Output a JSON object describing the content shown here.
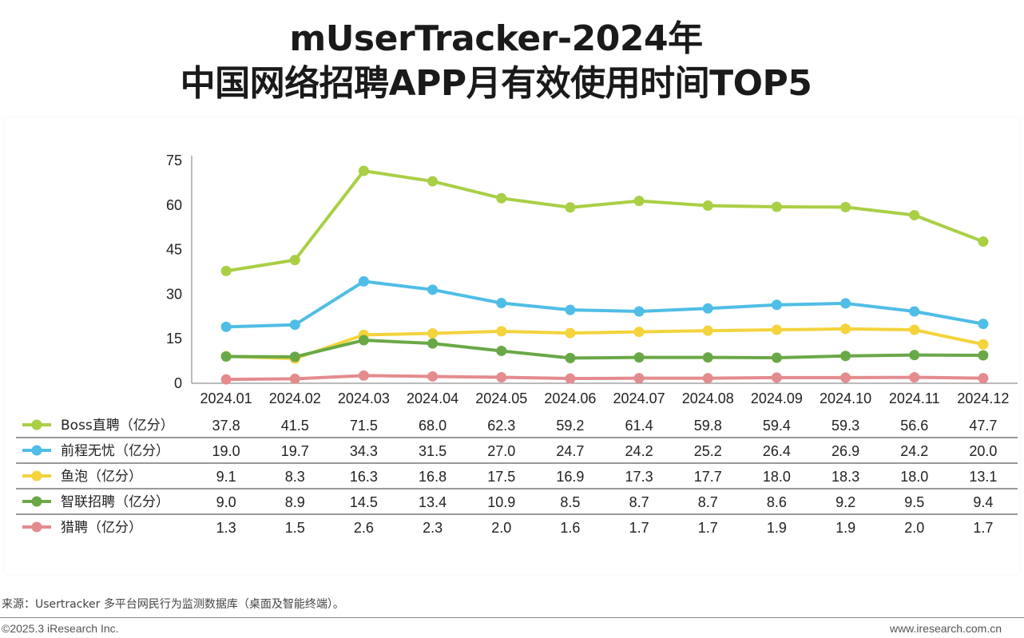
{
  "title_line1": "mUserTracker-2024年",
  "title_line2": "中国网络招聘APP月有效使用时间TOP5",
  "source_note": "来源：Usertracker 多平台网民行为监测数据库（桌面及智能终端）。",
  "copyright": "©2025.3 iResearch Inc.",
  "website": "www.iresearch.com.cn",
  "chart_data": {
    "type": "line",
    "categories": [
      "2024.01",
      "2024.02",
      "2024.03",
      "2024.04",
      "2024.05",
      "2024.06",
      "2024.07",
      "2024.08",
      "2024.09",
      "2024.10",
      "2024.11",
      "2024.12"
    ],
    "yticks": [
      "0",
      "15",
      "30",
      "45",
      "60",
      "75"
    ],
    "ylim": [
      0,
      75
    ],
    "grid": false,
    "legend": "data-table-below",
    "series": [
      {
        "name": "Boss直聘（亿分）",
        "color": "#a9cf45",
        "values": [
          "37.8",
          "41.5",
          "71.5",
          "68.0",
          "62.3",
          "59.2",
          "61.4",
          "59.8",
          "59.4",
          "59.3",
          "56.6",
          "47.7"
        ]
      },
      {
        "name": "前程无忧（亿分）",
        "color": "#4fbde6",
        "values": [
          "19.0",
          "19.7",
          "34.3",
          "31.5",
          "27.0",
          "24.7",
          "24.2",
          "25.2",
          "26.4",
          "26.9",
          "24.2",
          "20.0"
        ]
      },
      {
        "name": "鱼泡（亿分）",
        "color": "#f4d33c",
        "values": [
          "9.1",
          "8.3",
          "16.3",
          "16.8",
          "17.5",
          "16.9",
          "17.3",
          "17.7",
          "18.0",
          "18.3",
          "18.0",
          "13.1"
        ]
      },
      {
        "name": "智联招聘（亿分）",
        "color": "#6aa847",
        "values": [
          "9.0",
          "8.9",
          "14.5",
          "13.4",
          "10.9",
          "8.5",
          "8.7",
          "8.7",
          "8.6",
          "9.2",
          "9.5",
          "9.4"
        ]
      },
      {
        "name": "猎聘（亿分）",
        "color": "#e48b8e",
        "values": [
          "1.3",
          "1.5",
          "2.6",
          "2.3",
          "2.0",
          "1.6",
          "1.7",
          "1.7",
          "1.9",
          "1.9",
          "2.0",
          "1.7"
        ]
      }
    ]
  }
}
